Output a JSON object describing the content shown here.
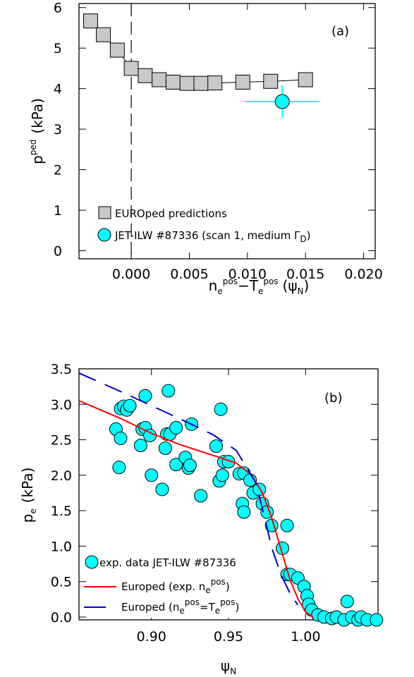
{
  "chart_data": [
    {
      "type": "scatter",
      "panel_label": "(a)",
      "xlabel": {
        "base": "n",
        "sub1": "e",
        "sup1": "pos",
        "minus": "−T",
        "sub2": "e",
        "sup2": "pos",
        "paren": "(ψ",
        "sub3": "N",
        "close": ")"
      },
      "ylabel": {
        "base": "p",
        "sup": "ped",
        "unit": "(kPa)"
      },
      "xlim": [
        -0.0045,
        0.021
      ],
      "ylim": [
        -0.2,
        6.1
      ],
      "xticks": [
        0.0,
        0.005,
        0.01,
        0.015,
        0.02
      ],
      "xtick_labels": [
        "0.000",
        "0.005",
        "0.010",
        "0.015",
        "0.020"
      ],
      "yticks": [
        0,
        1,
        2,
        3,
        4,
        5,
        6
      ],
      "ytick_labels": [
        "0",
        "1",
        "2",
        "3",
        "4",
        "5",
        "6"
      ],
      "vline_x": 0.0,
      "series": [
        {
          "name": "EUROped predictions",
          "marker": "square",
          "color": "#c8c8c8",
          "x": [
            -0.0035,
            -0.0024,
            -0.0012,
            0.0,
            0.0012,
            0.0024,
            0.0036,
            0.0048,
            0.006,
            0.0072,
            0.0096,
            0.012,
            0.015
          ],
          "y": [
            5.67,
            5.33,
            4.95,
            4.5,
            4.32,
            4.22,
            4.16,
            4.13,
            4.13,
            4.14,
            4.16,
            4.18,
            4.22
          ]
        },
        {
          "name_parts": {
            "main": "JET-ILW #87336 (scan 1, medium Γ",
            "sub": "D",
            "close": ")"
          },
          "marker": "circle",
          "color": "#00ffff",
          "x": [
            0.013
          ],
          "y": [
            3.68
          ],
          "xerr": [
            0.0032
          ],
          "yerr": [
            0.4
          ]
        }
      ]
    },
    {
      "type": "scatter",
      "panel_label": "(b)",
      "xlabel": {
        "base": "ψ",
        "sub": "N"
      },
      "ylabel": {
        "base": "p",
        "sub": "e",
        "unit": "(kPa)"
      },
      "xlim": [
        0.853,
        1.047
      ],
      "ylim": [
        -0.04,
        3.5
      ],
      "xticks": [
        0.9,
        0.95,
        1.0
      ],
      "xtick_labels": [
        "0.90",
        "0.95",
        "1.00"
      ],
      "yticks": [
        0.0,
        0.5,
        1.0,
        1.5,
        2.0,
        2.5,
        3.0,
        3.5
      ],
      "ytick_labels": [
        "0.0",
        "0.5",
        "1.0",
        "1.5",
        "2.0",
        "2.5",
        "3.0",
        "3.5"
      ],
      "series": [
        {
          "name": "exp. data JET-ILW #87336",
          "marker": "circle",
          "color": "#00ffff",
          "points": [
            [
              0.877,
              2.65
            ],
            [
              0.879,
              2.11
            ],
            [
              0.88,
              2.52
            ],
            [
              0.88,
              2.94
            ],
            [
              0.882,
              2.97
            ],
            [
              0.884,
              2.92
            ],
            [
              0.886,
              2.98
            ],
            [
              0.893,
              2.42
            ],
            [
              0.894,
              2.65
            ],
            [
              0.896,
              2.67
            ],
            [
              0.896,
              3.12
            ],
            [
              0.899,
              2.56
            ],
            [
              0.9,
              2.0
            ],
            [
              0.907,
              1.8
            ],
            [
              0.909,
              2.38
            ],
            [
              0.91,
              2.58
            ],
            [
              0.911,
              3.19
            ],
            [
              0.912,
              2.58
            ],
            [
              0.916,
              2.15
            ],
            [
              0.916,
              2.67
            ],
            [
              0.922,
              2.25
            ],
            [
              0.924,
              2.1
            ],
            [
              0.925,
              2.14
            ],
            [
              0.926,
              2.72
            ],
            [
              0.932,
              1.71
            ],
            [
              0.942,
              2.41
            ],
            [
              0.944,
              1.92
            ],
            [
              0.945,
              2.93
            ],
            [
              0.946,
              2.0
            ],
            [
              0.947,
              2.19
            ],
            [
              0.95,
              2.19
            ],
            [
              0.957,
              2.02
            ],
            [
              0.959,
              1.6
            ],
            [
              0.96,
              1.48
            ],
            [
              0.96,
              2.03
            ],
            [
              0.964,
              1.93
            ],
            [
              0.966,
              1.75
            ],
            [
              0.97,
              1.8
            ],
            [
              0.972,
              1.6
            ],
            [
              0.975,
              1.48
            ],
            [
              0.978,
              1.29
            ],
            [
              0.985,
              0.97
            ],
            [
              0.988,
              1.29
            ],
            [
              0.988,
              0.6
            ],
            [
              0.99,
              0.6
            ],
            [
              0.995,
              0.55
            ],
            [
              0.999,
              0.43
            ],
            [
              1.001,
              0.3
            ],
            [
              1.002,
              0.18
            ],
            [
              1.004,
              0.1
            ],
            [
              1.008,
              0.03
            ],
            [
              1.012,
              0.0
            ],
            [
              1.017,
              -0.02
            ],
            [
              1.02,
              0.0
            ],
            [
              1.025,
              -0.04
            ],
            [
              1.027,
              0.22
            ],
            [
              1.03,
              0.0
            ],
            [
              1.034,
              -0.04
            ],
            [
              1.036,
              0.0
            ],
            [
              1.04,
              -0.04
            ],
            [
              1.046,
              -0.04
            ]
          ]
        },
        {
          "name_parts": {
            "main": "Europed (exp. n",
            "sub": "e",
            "sup": "pos",
            "close": ")"
          },
          "style": "solid",
          "color": "#ff0000",
          "x": [
            0.853,
            0.88,
            0.9,
            0.92,
            0.94,
            0.955,
            0.965,
            0.972,
            0.978,
            0.984,
            0.99,
            0.995,
            1.0,
            1.005
          ],
          "y": [
            3.05,
            2.8,
            2.59,
            2.42,
            2.28,
            2.17,
            2.0,
            1.75,
            1.4,
            0.96,
            0.52,
            0.26,
            0.07,
            0.0
          ]
        },
        {
          "name_parts": {
            "main": "Europed (n",
            "sub1": "e",
            "sup1": "pos",
            "eq": "=T",
            "sub2": "e",
            "sup2": "pos",
            "close": ")"
          },
          "style": "dashed",
          "color": "#0000cc",
          "x": [
            0.853,
            0.88,
            0.9,
            0.92,
            0.94,
            0.955,
            0.962,
            0.968,
            0.974,
            0.978,
            0.984,
            0.99,
            0.995
          ],
          "y": [
            3.44,
            3.18,
            2.98,
            2.78,
            2.57,
            2.35,
            2.1,
            1.88,
            1.35,
            0.98,
            0.6,
            0.33,
            0.17
          ]
        }
      ]
    }
  ]
}
